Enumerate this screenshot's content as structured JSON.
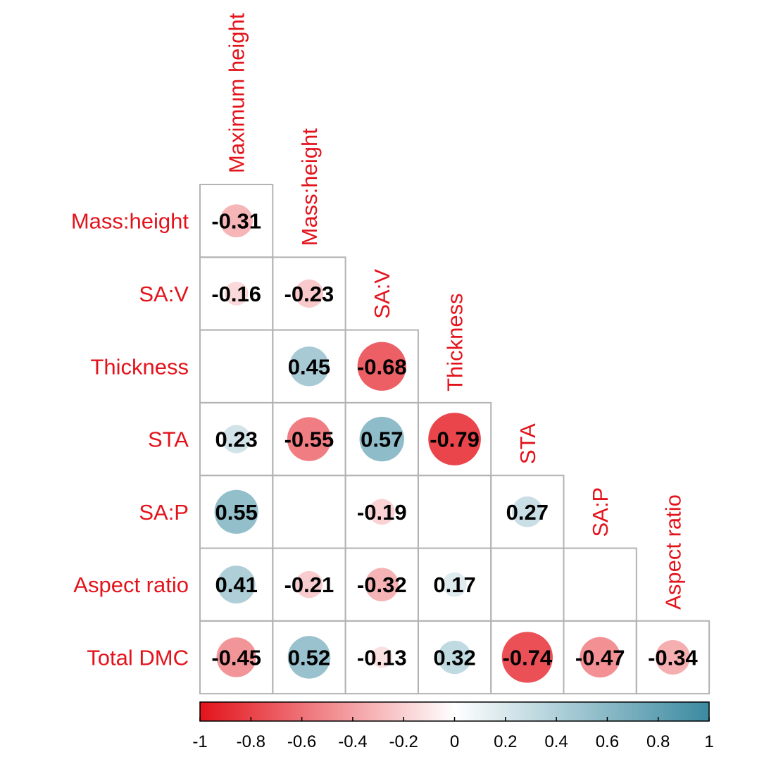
{
  "chart_data": {
    "type": "heatmap",
    "variables": [
      "Maximum height",
      "Mass:height",
      "SA:V",
      "Thickness",
      "STA",
      "SA:P",
      "Aspect ratio",
      "Total DMC"
    ],
    "row_labels": [
      "Mass:height",
      "SA:V",
      "Thickness",
      "STA",
      "SA:P",
      "Aspect ratio",
      "Total DMC"
    ],
    "column_labels": [
      "Maximum height",
      "Mass:height",
      "SA:V",
      "Thickness",
      "STA",
      "SA:P",
      "Aspect ratio"
    ],
    "matrix": [
      [
        -0.31,
        null,
        null,
        null,
        null,
        null,
        null
      ],
      [
        -0.16,
        -0.23,
        null,
        null,
        null,
        null,
        null
      ],
      [
        null,
        0.45,
        -0.68,
        null,
        null,
        null,
        null
      ],
      [
        0.23,
        -0.55,
        0.57,
        -0.79,
        null,
        null,
        null
      ],
      [
        0.55,
        null,
        -0.19,
        null,
        0.27,
        null,
        null
      ],
      [
        0.41,
        -0.21,
        -0.32,
        0.17,
        null,
        null,
        null
      ],
      [
        -0.45,
        0.52,
        -0.13,
        0.32,
        -0.74,
        -0.47,
        -0.34
      ]
    ],
    "colorbar": {
      "range": [
        -1,
        1
      ],
      "ticks": [
        "-1",
        "-0.8",
        "-0.6",
        "-0.4",
        "-0.2",
        "0",
        "0.2",
        "0.4",
        "0.6",
        "0.8",
        "1"
      ],
      "low_color": "#e3131b",
      "mid_color": "#ffffff",
      "high_color": "#3b8aa0"
    },
    "label_color": "#e3131b",
    "grid_color": "#b3b3b3",
    "legend_placement": "bottom"
  }
}
